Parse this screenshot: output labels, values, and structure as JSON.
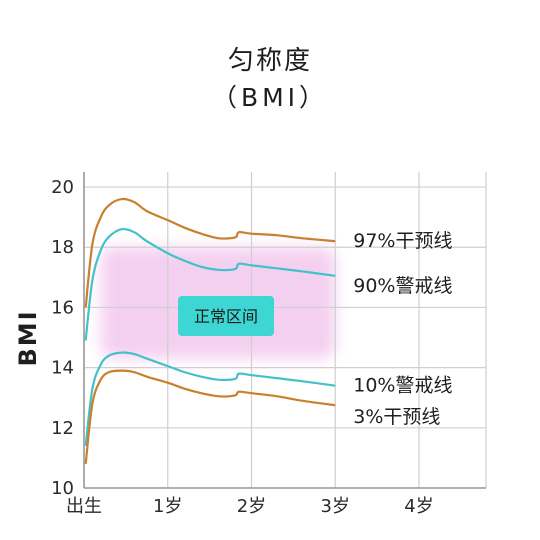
{
  "page": {
    "title": "匀称度",
    "subtitle": "（BMI）"
  },
  "chart_data": {
    "type": "line",
    "title": "匀称度",
    "subtitle": "（BMI）",
    "ylabel": "BMI",
    "xlabel": "",
    "xlim": [
      0,
      4.8
    ],
    "ylim": [
      10,
      20.5
    ],
    "grid": true,
    "x_ticks": [
      {
        "value": 0,
        "label": "出生"
      },
      {
        "value": 1,
        "label": "1岁"
      },
      {
        "value": 2,
        "label": "2岁"
      },
      {
        "value": 3,
        "label": "3岁"
      },
      {
        "value": 4,
        "label": "4岁"
      }
    ],
    "y_ticks": [
      {
        "value": 10,
        "label": "10"
      },
      {
        "value": 12,
        "label": "12"
      },
      {
        "value": 14,
        "label": "14"
      },
      {
        "value": 16,
        "label": "16"
      },
      {
        "value": 18,
        "label": "18"
      },
      {
        "value": 20,
        "label": "20"
      }
    ],
    "normal_zone": {
      "label": "正常区间",
      "x": [
        0.2,
        3.0
      ],
      "y": [
        14.3,
        18.0
      ],
      "color": "#f3c8ee",
      "label_color": "#3dd6d3"
    },
    "series": [
      {
        "name": "97%干预线",
        "color": "#c9802e",
        "points": [
          [
            0.02,
            16.0
          ],
          [
            0.1,
            18.1
          ],
          [
            0.2,
            19.0
          ],
          [
            0.3,
            19.4
          ],
          [
            0.45,
            19.6
          ],
          [
            0.6,
            19.5
          ],
          [
            0.75,
            19.2
          ],
          [
            1.0,
            18.9
          ],
          [
            1.2,
            18.65
          ],
          [
            1.4,
            18.45
          ],
          [
            1.6,
            18.3
          ],
          [
            1.75,
            18.3
          ],
          [
            1.82,
            18.35
          ],
          [
            1.85,
            18.5
          ],
          [
            2.0,
            18.45
          ],
          [
            2.3,
            18.4
          ],
          [
            2.6,
            18.3
          ],
          [
            3.0,
            18.2
          ]
        ]
      },
      {
        "name": "90%警戒线",
        "color": "#43c1c9",
        "points": [
          [
            0.02,
            14.9
          ],
          [
            0.1,
            16.9
          ],
          [
            0.2,
            17.9
          ],
          [
            0.3,
            18.35
          ],
          [
            0.45,
            18.6
          ],
          [
            0.6,
            18.5
          ],
          [
            0.75,
            18.2
          ],
          [
            1.0,
            17.8
          ],
          [
            1.2,
            17.55
          ],
          [
            1.4,
            17.35
          ],
          [
            1.6,
            17.25
          ],
          [
            1.75,
            17.25
          ],
          [
            1.82,
            17.3
          ],
          [
            1.85,
            17.45
          ],
          [
            2.0,
            17.4
          ],
          [
            2.3,
            17.3
          ],
          [
            2.6,
            17.2
          ],
          [
            3.0,
            17.05
          ]
        ]
      },
      {
        "name": "10%警戒线",
        "color": "#43c1c9",
        "points": [
          [
            0.02,
            11.4
          ],
          [
            0.1,
            13.3
          ],
          [
            0.2,
            14.1
          ],
          [
            0.3,
            14.4
          ],
          [
            0.45,
            14.5
          ],
          [
            0.6,
            14.45
          ],
          [
            0.75,
            14.3
          ],
          [
            1.0,
            14.05
          ],
          [
            1.2,
            13.85
          ],
          [
            1.4,
            13.7
          ],
          [
            1.6,
            13.6
          ],
          [
            1.75,
            13.6
          ],
          [
            1.82,
            13.65
          ],
          [
            1.85,
            13.8
          ],
          [
            2.0,
            13.75
          ],
          [
            2.3,
            13.65
          ],
          [
            2.6,
            13.55
          ],
          [
            3.0,
            13.4
          ]
        ]
      },
      {
        "name": "3%干预线",
        "color": "#c9802e",
        "points": [
          [
            0.02,
            10.8
          ],
          [
            0.1,
            12.8
          ],
          [
            0.2,
            13.6
          ],
          [
            0.3,
            13.85
          ],
          [
            0.45,
            13.9
          ],
          [
            0.6,
            13.85
          ],
          [
            0.75,
            13.7
          ],
          [
            1.0,
            13.5
          ],
          [
            1.2,
            13.3
          ],
          [
            1.4,
            13.15
          ],
          [
            1.6,
            13.05
          ],
          [
            1.75,
            13.05
          ],
          [
            1.82,
            13.1
          ],
          [
            1.85,
            13.2
          ],
          [
            2.0,
            13.15
          ],
          [
            2.3,
            13.05
          ],
          [
            2.6,
            12.9
          ],
          [
            3.0,
            12.75
          ]
        ]
      }
    ]
  }
}
